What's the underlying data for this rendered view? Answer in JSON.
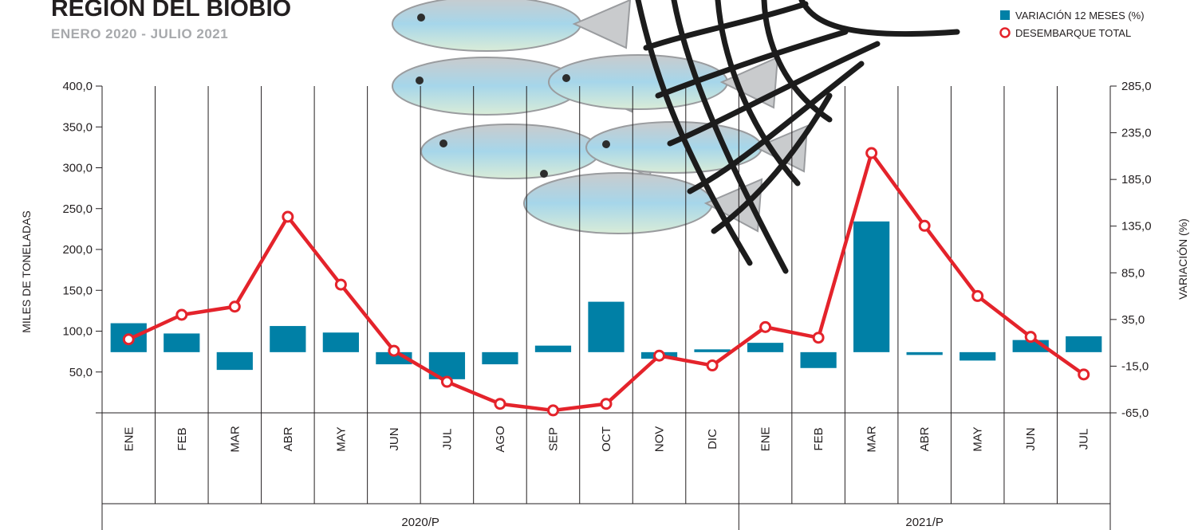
{
  "header": {
    "title": "REGIÓN DEL BIOBÍO",
    "subtitle": "ENERO 2020 - JULIO 2021"
  },
  "legend": {
    "bar_label": "VARIACIÓN 12 MESES (%)",
    "line_label": "DESEMBARQUE TOTAL"
  },
  "colors": {
    "bar": "#0080a6",
    "line": "#e4232b",
    "grid": "#231f20"
  },
  "chart_data": {
    "type": "bar+line",
    "ylabel": "MILES DE TONELADAS",
    "y2label": "VARIACIÓN (%)",
    "ylim": [
      0,
      400
    ],
    "y_ticks": [
      "50,0",
      "100,0",
      "150,0",
      "200,0",
      "250,0",
      "300,0",
      "350,0",
      "400,0"
    ],
    "y2lim": [
      -65,
      285
    ],
    "y2_ticks": [
      "-65,0",
      "-15,0",
      "35,0",
      "85,0",
      "135,0",
      "185,0",
      "235,0",
      "285,0"
    ],
    "groups": [
      {
        "label": "2020/P",
        "count": 12
      },
      {
        "label": "2021/P",
        "count": 7
      }
    ],
    "categories": [
      "ENE",
      "FEB",
      "MAR",
      "ABR",
      "MAY",
      "JUN",
      "JUL",
      "AGO",
      "SEP",
      "OCT",
      "NOV",
      "DIC",
      "ENE",
      "FEB",
      "MAR",
      "ABR",
      "MAY",
      "JUN",
      "JUL"
    ],
    "series": [
      {
        "name": "VARIACIÓN 12 MESES (%)",
        "axis": "right",
        "kind": "bar",
        "values": [
          31,
          20,
          -19,
          28,
          21,
          -13,
          -29,
          -13,
          7,
          54,
          -7,
          3,
          10,
          -17,
          140,
          -3,
          -9,
          13,
          17
        ]
      },
      {
        "name": "DESEMBARQUE TOTAL",
        "axis": "left",
        "kind": "line",
        "values": [
          90,
          120,
          130,
          240,
          157,
          76,
          38,
          11,
          3,
          11,
          70,
          58,
          105,
          92,
          318,
          229,
          143,
          93,
          47
        ]
      }
    ]
  }
}
